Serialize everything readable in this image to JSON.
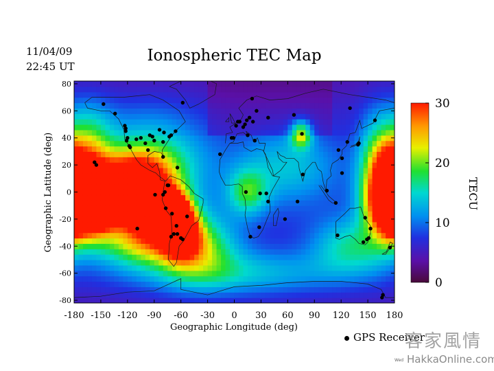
{
  "header": {
    "date": "11/04/09",
    "time": "22:45 UT"
  },
  "chart_data": {
    "type": "heatmap",
    "title": "Ionospheric TEC Map",
    "xlabel": "Geographic Longitude (deg)",
    "ylabel": "Geographic Latitude (deg)",
    "xlim": [
      -180,
      180
    ],
    "ylim": [
      -82,
      82
    ],
    "xticks": [
      -180,
      -150,
      -120,
      -90,
      -60,
      -30,
      0,
      30,
      60,
      90,
      120,
      150,
      180
    ],
    "yticks": [
      -80,
      -60,
      -40,
      -20,
      0,
      20,
      40,
      60,
      80
    ],
    "colorbar": {
      "label": "TECU",
      "min": 0,
      "max": 30,
      "ticks": [
        0,
        10,
        20,
        30
      ]
    },
    "tec_features": [
      {
        "lon": -170,
        "lat": 0,
        "tec": 29,
        "slon": 18,
        "slat": 20
      },
      {
        "lon": -160,
        "lat": -10,
        "tec": 25,
        "slon": 25,
        "slat": 14
      },
      {
        "lon": -125,
        "lat": -5,
        "tec": 23,
        "slon": 35,
        "slat": 12
      },
      {
        "lon": -90,
        "lat": -15,
        "tec": 24,
        "slon": 22,
        "slat": 13
      },
      {
        "lon": -70,
        "lat": -17,
        "tec": 28,
        "slon": 12,
        "slat": 10
      },
      {
        "lon": -60,
        "lat": -30,
        "tec": 22,
        "slon": 14,
        "slat": 12
      },
      {
        "lon": -110,
        "lat": 15,
        "tec": 16,
        "slon": 30,
        "slat": 12
      },
      {
        "lon": -95,
        "lat": 25,
        "tec": 10,
        "slon": 45,
        "slat": 25
      },
      {
        "lon": -165,
        "lat": 40,
        "tec": 9,
        "slon": 20,
        "slat": 20
      },
      {
        "lon": -100,
        "lat": -38,
        "tec": 14,
        "slon": 40,
        "slat": 12
      },
      {
        "lon": -40,
        "lat": -40,
        "tec": 11,
        "slon": 30,
        "slat": 18
      },
      {
        "lon": 175,
        "lat": 0,
        "tec": 22,
        "slon": 10,
        "slat": 20
      },
      {
        "lon": 160,
        "lat": 10,
        "tec": 14,
        "slon": 15,
        "slat": 30
      },
      {
        "lon": 75,
        "lat": 43,
        "tec": 14,
        "slon": 8,
        "slat": 7
      },
      {
        "lon": 15,
        "lat": 0,
        "tec": 10,
        "slon": 16,
        "slat": 12
      },
      {
        "lon": 130,
        "lat": -40,
        "tec": 9,
        "slon": 30,
        "slat": 15
      },
      {
        "lon": 0,
        "lat": -60,
        "tec": 8,
        "slon": 90,
        "slat": 12
      },
      {
        "lon": 60,
        "lat": 20,
        "tec": 7,
        "slon": 40,
        "slat": 20
      }
    ],
    "gps_receivers": [
      [
        -147,
        65
      ],
      [
        -134,
        58
      ],
      [
        -123,
        49
      ],
      [
        -122,
        47
      ],
      [
        -121,
        38
      ],
      [
        -118,
        34
      ],
      [
        -117,
        33
      ],
      [
        -105,
        40
      ],
      [
        -97,
        31
      ],
      [
        -95,
        42
      ],
      [
        -90,
        38
      ],
      [
        -80,
        26
      ],
      [
        -80,
        37
      ],
      [
        -79,
        44
      ],
      [
        -71,
        42
      ],
      [
        -73,
        41
      ],
      [
        -66,
        45
      ],
      [
        -64,
        18
      ],
      [
        -157,
        22
      ],
      [
        -155,
        20
      ],
      [
        -100,
        36
      ],
      [
        -110,
        39
      ],
      [
        -89,
        -2
      ],
      [
        -78,
        0
      ],
      [
        -75,
        5
      ],
      [
        -74,
        5
      ],
      [
        -109,
        -27
      ],
      [
        -70,
        -16
      ],
      [
        -65,
        -25
      ],
      [
        -71,
        -33
      ],
      [
        -68,
        -31
      ],
      [
        -64,
        -31
      ],
      [
        -58,
        -35
      ],
      [
        -53,
        -18
      ],
      [
        -60,
        -34
      ],
      [
        -77,
        -12
      ],
      [
        -80,
        -2
      ],
      [
        -120,
        40
      ],
      [
        -122,
        45
      ],
      [
        -84,
        46
      ],
      [
        -92,
        41
      ],
      [
        -58,
        66
      ],
      [
        2,
        49
      ],
      [
        4,
        52
      ],
      [
        10,
        48
      ],
      [
        6,
        52
      ],
      [
        12,
        50
      ],
      [
        14,
        53
      ],
      [
        17,
        55
      ],
      [
        21,
        52
      ],
      [
        23,
        38
      ],
      [
        15,
        42
      ],
      [
        -1,
        40
      ],
      [
        -3,
        40
      ],
      [
        -16,
        28
      ],
      [
        38,
        -7
      ],
      [
        29,
        -1
      ],
      [
        36,
        -1
      ],
      [
        13,
        0
      ],
      [
        18,
        -33
      ],
      [
        28,
        -26
      ],
      [
        57,
        -20
      ],
      [
        67,
        57
      ],
      [
        38,
        55
      ],
      [
        20,
        69
      ],
      [
        25,
        60
      ],
      [
        76,
        43
      ],
      [
        77,
        13
      ],
      [
        71,
        -7
      ],
      [
        104,
        1
      ],
      [
        114,
        -8
      ],
      [
        117,
        31
      ],
      [
        121,
        14
      ],
      [
        121,
        25
      ],
      [
        127,
        37
      ],
      [
        140,
        36
      ],
      [
        139,
        35
      ],
      [
        147,
        -19
      ],
      [
        145,
        -37
      ],
      [
        151,
        -34
      ],
      [
        149,
        -35
      ],
      [
        116,
        -32
      ],
      [
        153,
        -27
      ],
      [
        175,
        -41
      ],
      [
        166,
        -78
      ],
      [
        158,
        53
      ],
      [
        130,
        62
      ],
      [
        167,
        -76
      ]
    ],
    "annotations": [
      "GPS Receiver"
    ]
  },
  "watermark": {
    "cjk": "客家風情",
    "site": "HakkaOnline.com",
    "small": "Wed"
  }
}
